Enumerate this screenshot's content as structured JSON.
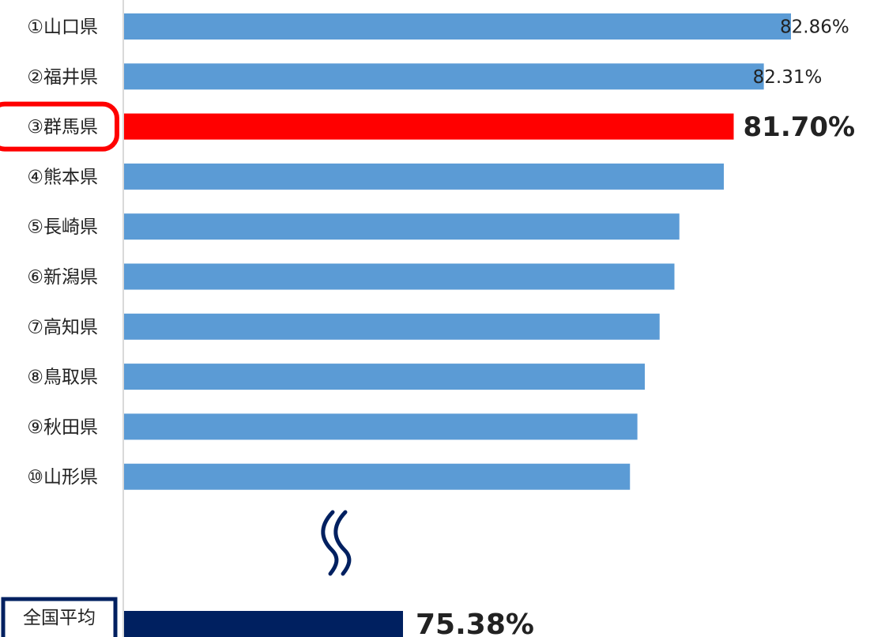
{
  "chart_data": {
    "type": "bar",
    "orientation": "horizontal",
    "categories": [
      "①山口県",
      "②福井県",
      "③群馬県",
      "④熊本県",
      "⑤長崎県",
      "⑥新潟県",
      "⑦高知県",
      "⑧鳥取県",
      "⑨秋田県",
      "⑩山形県"
    ],
    "values": [
      82.86,
      82.31,
      81.7,
      81.5,
      80.6,
      80.5,
      80.2,
      79.9,
      79.75,
      79.6
    ],
    "value_labels": [
      "82.86%",
      "82.31%",
      "81.70%",
      "",
      "",
      "",
      "",
      "",
      "",
      ""
    ],
    "highlight_index": 2,
    "axis_break": true,
    "national_average": {
      "label": "全国平均",
      "value": 75.38,
      "value_label": "75.38%"
    },
    "colors": {
      "bar": "#5b9bd5",
      "highlight": "#ff0000",
      "average": "#002060",
      "axis": "#d9d9d9",
      "label_text": "#222222"
    },
    "legend": "none",
    "grid": false
  }
}
